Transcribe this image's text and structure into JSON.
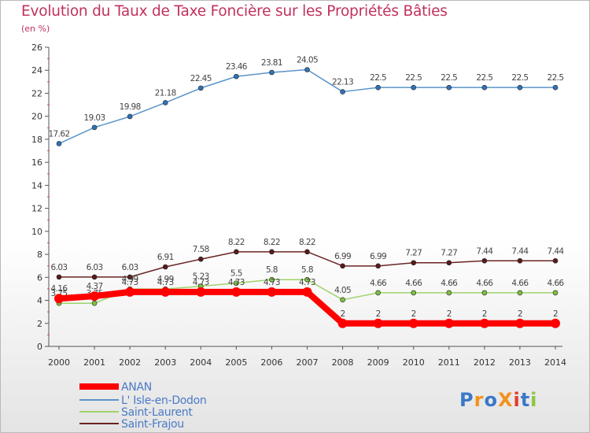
{
  "title": "Evolution du Taux de Taxe Foncière sur les Propriétés Bâties",
  "subtitle": "(en %)",
  "logo_text": "ProXiti",
  "chart_data": {
    "type": "line",
    "title": "Evolution du Taux de Taxe Foncière sur les Propriétés Bâties",
    "ylabel": "(en %)",
    "xlabel": "",
    "ylim": [
      0,
      26
    ],
    "yticks": [
      0,
      2,
      4,
      6,
      8,
      10,
      12,
      14,
      16,
      18,
      20,
      22,
      24,
      26
    ],
    "grid": false,
    "legend_position": "bottom-left",
    "x": [
      "2000",
      "2001",
      "2002",
      "2003",
      "2004",
      "2005",
      "2006",
      "2007",
      "2008",
      "2009",
      "2010",
      "2011",
      "2012",
      "2013",
      "2014"
    ],
    "series": [
      {
        "name": "L' Isle-en-Dodon",
        "color": "#5b93c8",
        "marker": "#2f73b8",
        "width": 1.5,
        "values": [
          17.62,
          19.03,
          19.98,
          21.18,
          22.45,
          23.46,
          23.81,
          24.05,
          22.13,
          22.5,
          22.5,
          22.5,
          22.5,
          22.5,
          22.5
        ],
        "labels": [
          "17.62",
          "19.03",
          "19.98",
          "21.18",
          "22.45",
          "23.46",
          "23.81",
          "24.05",
          "22.13",
          "22.5",
          "22.5",
          "22.5",
          "22.5",
          "22.5",
          "22.5"
        ]
      },
      {
        "name": "Saint-Frajou",
        "color": "#6b2424",
        "marker": "#5a1a1a",
        "width": 1.5,
        "values": [
          6.03,
          6.03,
          6.03,
          6.91,
          7.58,
          8.22,
          8.22,
          8.22,
          6.99,
          6.99,
          7.27,
          7.27,
          7.44,
          7.44,
          7.44
        ],
        "labels": [
          "6.03",
          "6.03",
          "6.03",
          "6.91",
          "7.58",
          "8.22",
          "8.22",
          "8.22",
          "6.99",
          "6.99",
          "7.27",
          "7.27",
          "7.44",
          "7.44",
          "7.44"
        ]
      },
      {
        "name": "Saint-Laurent",
        "color": "#9fd36a",
        "marker": "#7fc03f",
        "width": 1.5,
        "values": [
          3.75,
          3.75,
          4.99,
          4.99,
          5.23,
          5.5,
          5.8,
          5.8,
          4.05,
          4.66,
          4.66,
          4.66,
          4.66,
          4.66,
          4.66
        ],
        "labels": [
          "3.75",
          "3.75",
          "4.99",
          "4.99",
          "5.23",
          "5.5",
          "5.8",
          "5.8",
          "4.05",
          "4.66",
          "4.66",
          "4.66",
          "4.66",
          "4.66",
          "4.66"
        ]
      },
      {
        "name": "ANAN",
        "color": "#ff0000",
        "marker": "#ff0000",
        "width": 8,
        "values": [
          4.16,
          4.37,
          4.73,
          4.73,
          4.73,
          4.73,
          4.73,
          4.73,
          2,
          2,
          2,
          2,
          2,
          2,
          2
        ],
        "labels": [
          "4.16",
          "4.37",
          "4.73",
          "4.73",
          "4.73",
          "4.73",
          "4.73",
          "4.73",
          "2",
          "2",
          "2",
          "2",
          "2",
          "2",
          "2"
        ]
      }
    ],
    "legend": [
      "ANAN",
      "L' Isle-en-Dodon",
      "Saint-Laurent",
      "Saint-Frajou"
    ]
  }
}
